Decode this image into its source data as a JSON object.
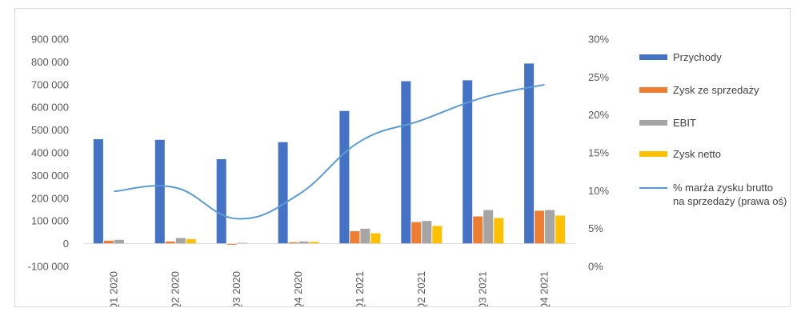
{
  "chart_data": {
    "type": "bar",
    "title": "",
    "categories": [
      "Q1 2020",
      "Q2 2020",
      "Q3 2020",
      "Q4 2020",
      "Q1 2021",
      "Q2 2021",
      "Q3 2021",
      "Q4 2021"
    ],
    "series": [
      {
        "name": "Przychody",
        "type": "bar",
        "axis": "left",
        "color": "#4472c4",
        "values": [
          460000,
          457000,
          372000,
          447000,
          584000,
          715000,
          719000,
          793000
        ]
      },
      {
        "name": "Zysk ze sprzedaży",
        "type": "bar",
        "axis": "left",
        "color": "#ed7d31",
        "values": [
          13000,
          10000,
          -5000,
          6000,
          55000,
          95000,
          120000,
          145000
        ]
      },
      {
        "name": "EBIT",
        "type": "bar",
        "axis": "left",
        "color": "#a5a5a5",
        "values": [
          17000,
          25000,
          4000,
          10000,
          66000,
          100000,
          148000,
          148000
        ]
      },
      {
        "name": "Zysk netto",
        "type": "bar",
        "axis": "left",
        "color": "#ffc000",
        "values": [
          0,
          20000,
          0,
          8000,
          46000,
          78000,
          113000,
          124000
        ]
      },
      {
        "name": "% marża zysku brutto na sprzedaży (prawa oś)",
        "name_lines": [
          "% marża zysku brutto",
          "na sprzedaży (prawa oś)"
        ],
        "type": "line",
        "axis": "right",
        "color": "#5b9bd5",
        "values": [
          0.099,
          0.104,
          0.063,
          0.095,
          0.165,
          0.193,
          0.223,
          0.24
        ]
      }
    ],
    "y_left": {
      "min": -100000,
      "max": 900000,
      "step": 100000,
      "tick_labels": [
        "-100 000",
        "0",
        "100 000",
        "200 000",
        "300 000",
        "400 000",
        "500 000",
        "600 000",
        "700 000",
        "800 000",
        "900 000"
      ]
    },
    "y_right": {
      "min": 0,
      "max": 0.3,
      "step": 0.05,
      "tick_labels": [
        "0%",
        "5%",
        "10%",
        "15%",
        "20%",
        "25%",
        "30%"
      ]
    },
    "grid": false,
    "legend_position": "right"
  }
}
